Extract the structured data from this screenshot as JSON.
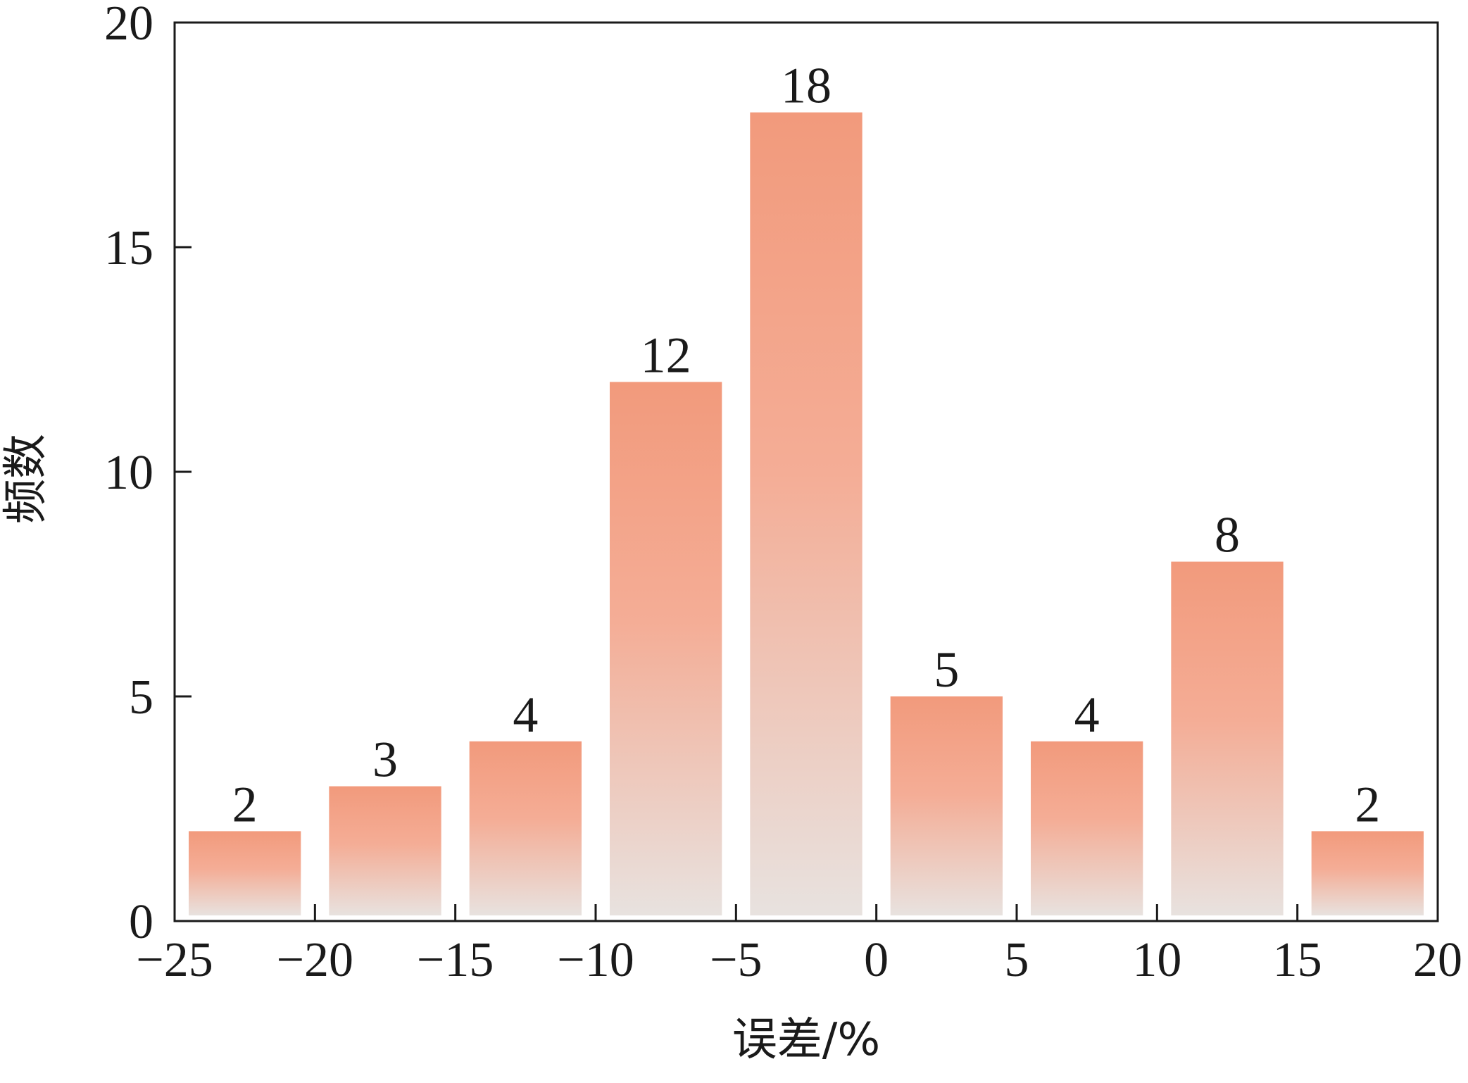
{
  "chart_data": {
    "type": "bar",
    "bins": [
      {
        "x0": -25,
        "x1": -20,
        "value": 2
      },
      {
        "x0": -20,
        "x1": -15,
        "value": 3
      },
      {
        "x0": -15,
        "x1": -10,
        "value": 4
      },
      {
        "x0": -10,
        "x1": -5,
        "value": 12
      },
      {
        "x0": -5,
        "x1": 0,
        "value": 18
      },
      {
        "x0": 0,
        "x1": 5,
        "value": 5
      },
      {
        "x0": 5,
        "x1": 10,
        "value": 4
      },
      {
        "x0": 10,
        "x1": 15,
        "value": 8
      },
      {
        "x0": 15,
        "x1": 20,
        "value": 2
      }
    ],
    "value_labels": [
      "2",
      "3",
      "4",
      "12",
      "18",
      "5",
      "4",
      "8",
      "2"
    ],
    "xlabel": "误差/%",
    "ylabel": "频数",
    "xlim": [
      -25,
      20
    ],
    "ylim": [
      0,
      20
    ],
    "xticks": [
      -25,
      -20,
      -15,
      -10,
      -5,
      0,
      5,
      10,
      15,
      20
    ],
    "xtick_labels": [
      "−25",
      "−20",
      "−15",
      "−10",
      "−5",
      "0",
      "5",
      "10",
      "15",
      "20"
    ],
    "yticks": [
      0,
      5,
      10,
      15,
      20
    ],
    "ytick_labels": [
      "0",
      "5",
      "10",
      "15",
      "20"
    ],
    "grid": false,
    "legend": "none",
    "colors": {
      "bar_top": "#f29a7c",
      "bar_bottom": "#e8e2df",
      "axis": "#1a1a1a"
    }
  }
}
